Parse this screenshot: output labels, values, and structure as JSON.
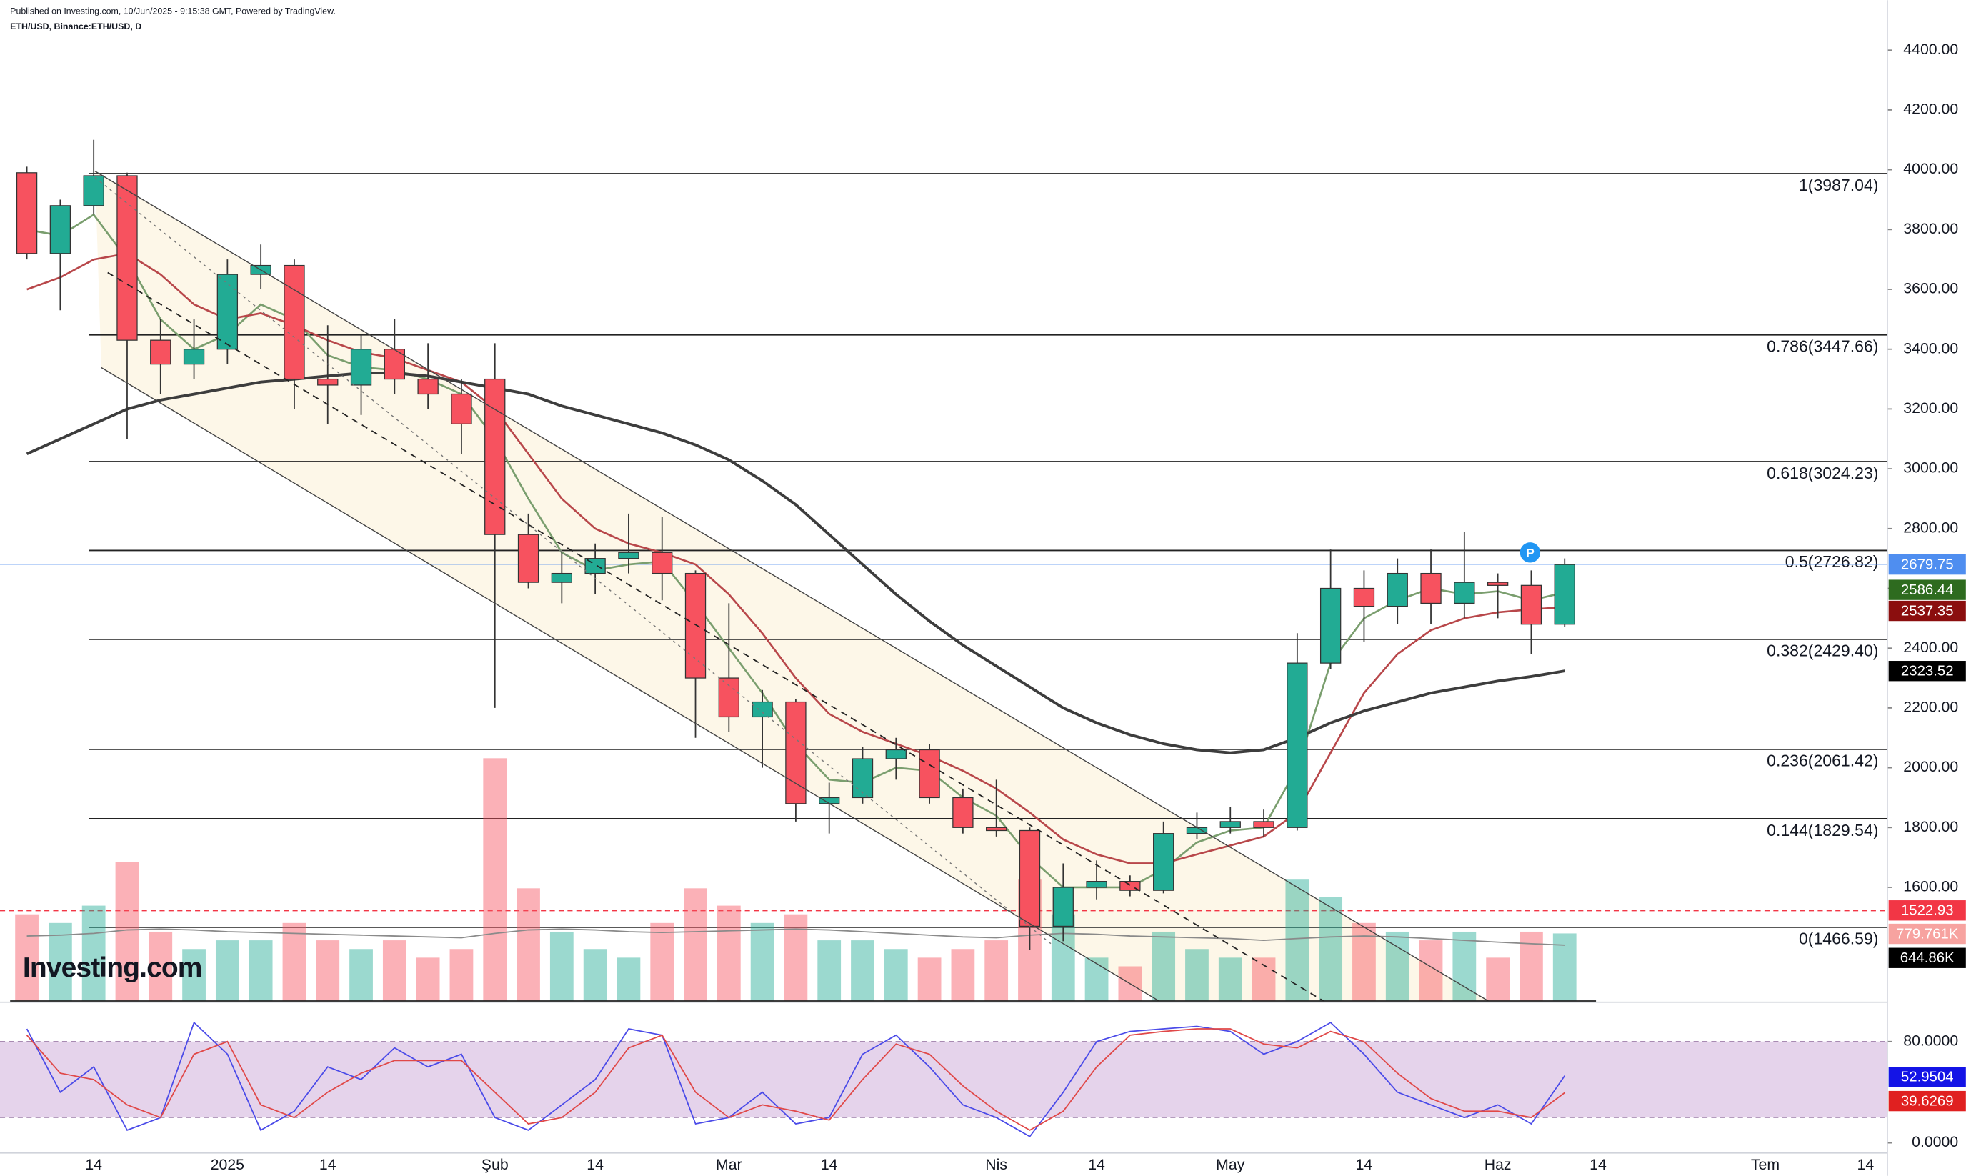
{
  "chart_data": {
    "type": "candlestick",
    "header": [
      "Published on Investing.com, 10/Jun/2025 - 9:15:38 GMT, Powered by TradingView.",
      "ETH/USD, Binance:ETH/USD, D"
    ],
    "logo": "Investing.com",
    "categories": [
      null,
      null,
      "14",
      null,
      null,
      null,
      "2025",
      null,
      null,
      "14",
      null,
      null,
      null,
      null,
      "Şub",
      null,
      null,
      "14",
      null,
      null,
      null,
      "Mar",
      null,
      null,
      "14",
      null,
      null,
      null,
      null,
      "Nis",
      null,
      null,
      "14",
      null,
      null,
      null,
      "May",
      null,
      null,
      null,
      "14",
      null,
      null,
      null,
      "Haz",
      null,
      null,
      "14",
      null,
      null,
      null,
      null,
      "Tem",
      null,
      null,
      "14"
    ],
    "ylim": [
      1220,
      4440
    ],
    "yticks": [
      {
        "value": 1600,
        "label": "1600.00"
      },
      {
        "value": 1800,
        "label": "1800.00"
      },
      {
        "value": 2000,
        "label": "2000.00"
      },
      {
        "value": 2200,
        "label": "2200.00"
      },
      {
        "value": 2400,
        "label": "2400.00"
      },
      {
        "value": 2600,
        "label": "2600.00"
      },
      {
        "value": 2800,
        "label": "2800.00"
      },
      {
        "value": 3000,
        "label": "3000.00"
      },
      {
        "value": 3200,
        "label": "3200.00"
      },
      {
        "value": 3400,
        "label": "3400.00"
      },
      {
        "value": 3600,
        "label": "3600.00"
      },
      {
        "value": 3800,
        "label": "3800.00"
      },
      {
        "value": 4000,
        "label": "4000.00"
      },
      {
        "value": 4200,
        "label": "4200.00"
      },
      {
        "value": 4400,
        "label": "4400.00"
      }
    ],
    "up_color": "#22ab94",
    "down_color": "#f7525f",
    "last_color": "#4f8ef0",
    "ohlc": {
      "open": [
        3990,
        3720,
        3880,
        3980,
        3430,
        3350,
        3400,
        3650,
        3680,
        3300,
        3280,
        3400,
        3300,
        3250,
        3300,
        2780,
        2620,
        2650,
        2700,
        2720,
        2650,
        2300,
        2170,
        2220,
        1880,
        1900,
        2030,
        2060,
        1900,
        1800,
        1790,
        1470,
        1600,
        1620,
        1590,
        1780,
        1800,
        1820,
        1800,
        2350,
        2600,
        2540,
        2650,
        2550,
        2620,
        2610,
        2480,
        null,
        null,
        null,
        null,
        null,
        null,
        null,
        null,
        null
      ],
      "high": [
        4010,
        3900,
        4100,
        3990,
        3500,
        3500,
        3700,
        3750,
        3700,
        3480,
        3450,
        3500,
        3420,
        3300,
        3420,
        2850,
        2720,
        2750,
        2850,
        2840,
        2660,
        2550,
        2260,
        2230,
        1950,
        2070,
        2100,
        2080,
        1930,
        1960,
        1800,
        1680,
        1690,
        1640,
        1820,
        1850,
        1870,
        1860,
        2450,
        2730,
        2660,
        2700,
        2730,
        2790,
        2650,
        2660,
        2700,
        null,
        null,
        null,
        null,
        null,
        null,
        null,
        null,
        null
      ],
      "low": [
        3700,
        3530,
        3850,
        3100,
        3250,
        3300,
        3350,
        3600,
        3200,
        3150,
        3180,
        3250,
        3200,
        3050,
        2200,
        2600,
        2550,
        2580,
        2650,
        2560,
        2100,
        2120,
        2000,
        1820,
        1780,
        1880,
        1960,
        1880,
        1780,
        1770,
        1390,
        1420,
        1560,
        1570,
        1580,
        1760,
        1780,
        1770,
        1790,
        2330,
        2420,
        2480,
        2480,
        2500,
        2500,
        2380,
        2470,
        null,
        null,
        null,
        null,
        null,
        null,
        null,
        null,
        null
      ],
      "close": [
        3720,
        3880,
        3980,
        3430,
        3350,
        3400,
        3650,
        3680,
        3300,
        3280,
        3400,
        3300,
        3250,
        3150,
        2780,
        2620,
        2650,
        2700,
        2720,
        2650,
        2300,
        2170,
        2220,
        1880,
        1900,
        2030,
        2060,
        1900,
        1800,
        1790,
        1470,
        1600,
        1620,
        1590,
        1780,
        1800,
        1820,
        1800,
        2350,
        2600,
        2540,
        2650,
        2550,
        2620,
        2610,
        2480,
        2679.75,
        null,
        null,
        null,
        null,
        null,
        null,
        null,
        null,
        null
      ]
    },
    "moving_averages": [
      {
        "color": "#7a9e6e",
        "tag_color": "#2e6b1f",
        "values": [
          3800,
          3780,
          3850,
          3700,
          3500,
          3400,
          3450,
          3550,
          3500,
          3380,
          3340,
          3330,
          3300,
          3250,
          3100,
          2900,
          2720,
          2660,
          2680,
          2690,
          2550,
          2400,
          2250,
          2080,
          1960,
          1950,
          2000,
          1990,
          1900,
          1840,
          1700,
          1600,
          1600,
          1600,
          1660,
          1750,
          1790,
          1800,
          2000,
          2350,
          2500,
          2560,
          2600,
          2580,
          2590,
          2560,
          2586.44,
          null,
          null,
          null,
          null,
          null,
          null,
          null,
          null,
          null
        ]
      },
      {
        "color": "#b8474a",
        "tag_color": "#8b0e0e",
        "values": [
          3600,
          3640,
          3700,
          3720,
          3650,
          3550,
          3500,
          3520,
          3480,
          3430,
          3390,
          3370,
          3330,
          3290,
          3200,
          3050,
          2900,
          2800,
          2750,
          2720,
          2680,
          2580,
          2450,
          2300,
          2180,
          2120,
          2080,
          2040,
          1990,
          1930,
          1850,
          1760,
          1710,
          1680,
          1680,
          1710,
          1740,
          1770,
          1850,
          2050,
          2250,
          2380,
          2460,
          2500,
          2520,
          2530,
          2537.35,
          null,
          null,
          null,
          null,
          null,
          null,
          null,
          null,
          null
        ]
      },
      {
        "color": "#3d3d3d",
        "tag_color": "#000000",
        "values": [
          3050,
          3100,
          3150,
          3200,
          3230,
          3250,
          3270,
          3290,
          3300,
          3310,
          3320,
          3320,
          3310,
          3290,
          3270,
          3250,
          3210,
          3180,
          3150,
          3120,
          3080,
          3030,
          2960,
          2880,
          2780,
          2680,
          2580,
          2490,
          2410,
          2340,
          2270,
          2200,
          2150,
          2110,
          2080,
          2060,
          2050,
          2060,
          2100,
          2150,
          2190,
          2220,
          2250,
          2270,
          2290,
          2305,
          2323.52,
          null,
          null,
          null,
          null,
          null,
          null,
          null,
          null,
          null
        ]
      }
    ],
    "fib_levels": [
      {
        "value": 3987.04,
        "label": "1(3987.04)"
      },
      {
        "value": 3447.66,
        "label": "0.786(3447.66)"
      },
      {
        "value": 3024.23,
        "label": "0.618(3024.23)"
      },
      {
        "value": 2726.82,
        "label": "0.5(2726.82)"
      },
      {
        "value": 2429.4,
        "label": "0.382(2429.40)"
      },
      {
        "value": 2061.42,
        "label": "0.236(2061.42)"
      },
      {
        "value": 1829.54,
        "label": "0.144(1829.54)"
      },
      {
        "value": 1466.59,
        "label": "0(1466.59)"
      }
    ],
    "alert_line": {
      "value": 1522.93,
      "color": "#f23645"
    },
    "volume": {
      "vlim": [
        0,
        3800000
      ],
      "values": [
        1000000,
        900000,
        1100000,
        1600000,
        800000,
        600000,
        700000,
        700000,
        900000,
        700000,
        600000,
        700000,
        500000,
        600000,
        2800000,
        1300000,
        800000,
        600000,
        500000,
        900000,
        1300000,
        1100000,
        900000,
        1000000,
        700000,
        700000,
        600000,
        500000,
        600000,
        700000,
        1400000,
        1000000,
        500000,
        400000,
        800000,
        600000,
        500000,
        500000,
        1400000,
        1200000,
        900000,
        800000,
        700000,
        800000,
        500000,
        800000,
        779761,
        null,
        null,
        null,
        null,
        null,
        null,
        null,
        null,
        null
      ],
      "last_label": "779.761K",
      "last_color": "#f7a3a0",
      "ma_values": [
        750000,
        760000,
        780000,
        820000,
        830000,
        820000,
        800000,
        790000,
        780000,
        770000,
        760000,
        750000,
        740000,
        730000,
        780000,
        820000,
        830000,
        820000,
        800000,
        790000,
        800000,
        810000,
        820000,
        830000,
        820000,
        800000,
        780000,
        760000,
        740000,
        730000,
        760000,
        780000,
        770000,
        750000,
        740000,
        730000,
        720000,
        700000,
        720000,
        740000,
        750000,
        740000,
        720000,
        700000,
        680000,
        660000,
        644860,
        null,
        null,
        null,
        null,
        null,
        null,
        null,
        null,
        null
      ],
      "ma_last_label": "644.86K",
      "ma_color": "#8a8a8a"
    },
    "oscillator": {
      "ylim": [
        -8,
        110
      ],
      "yticks": [
        {
          "value": 0,
          "label": "0.0000"
        },
        {
          "value": 80,
          "label": "80.0000"
        }
      ],
      "band": [
        20,
        80
      ],
      "band_color": "#e1cbe8",
      "series": [
        {
          "color": "#4a4ae8",
          "tag_color": "#1414e6",
          "values": [
            90,
            40,
            60,
            10,
            20,
            95,
            70,
            10,
            25,
            60,
            50,
            75,
            60,
            70,
            20,
            10,
            30,
            50,
            90,
            85,
            15,
            20,
            40,
            15,
            20,
            70,
            85,
            60,
            30,
            20,
            5,
            40,
            80,
            88,
            90,
            92,
            88,
            70,
            80,
            95,
            70,
            40,
            30,
            20,
            30,
            15,
            52.9504,
            null,
            null,
            null,
            null,
            null,
            null,
            null,
            null,
            null
          ]
        },
        {
          "color": "#e04848",
          "tag_color": "#e02020",
          "values": [
            85,
            55,
            50,
            30,
            20,
            70,
            80,
            30,
            20,
            40,
            55,
            65,
            65,
            65,
            40,
            15,
            20,
            40,
            75,
            85,
            40,
            20,
            30,
            25,
            18,
            50,
            78,
            70,
            45,
            25,
            10,
            25,
            60,
            85,
            88,
            90,
            90,
            78,
            75,
            88,
            80,
            55,
            35,
            25,
            25,
            20,
            39.6269,
            null,
            null,
            null,
            null,
            null,
            null,
            null,
            null,
            null
          ]
        }
      ]
    }
  }
}
